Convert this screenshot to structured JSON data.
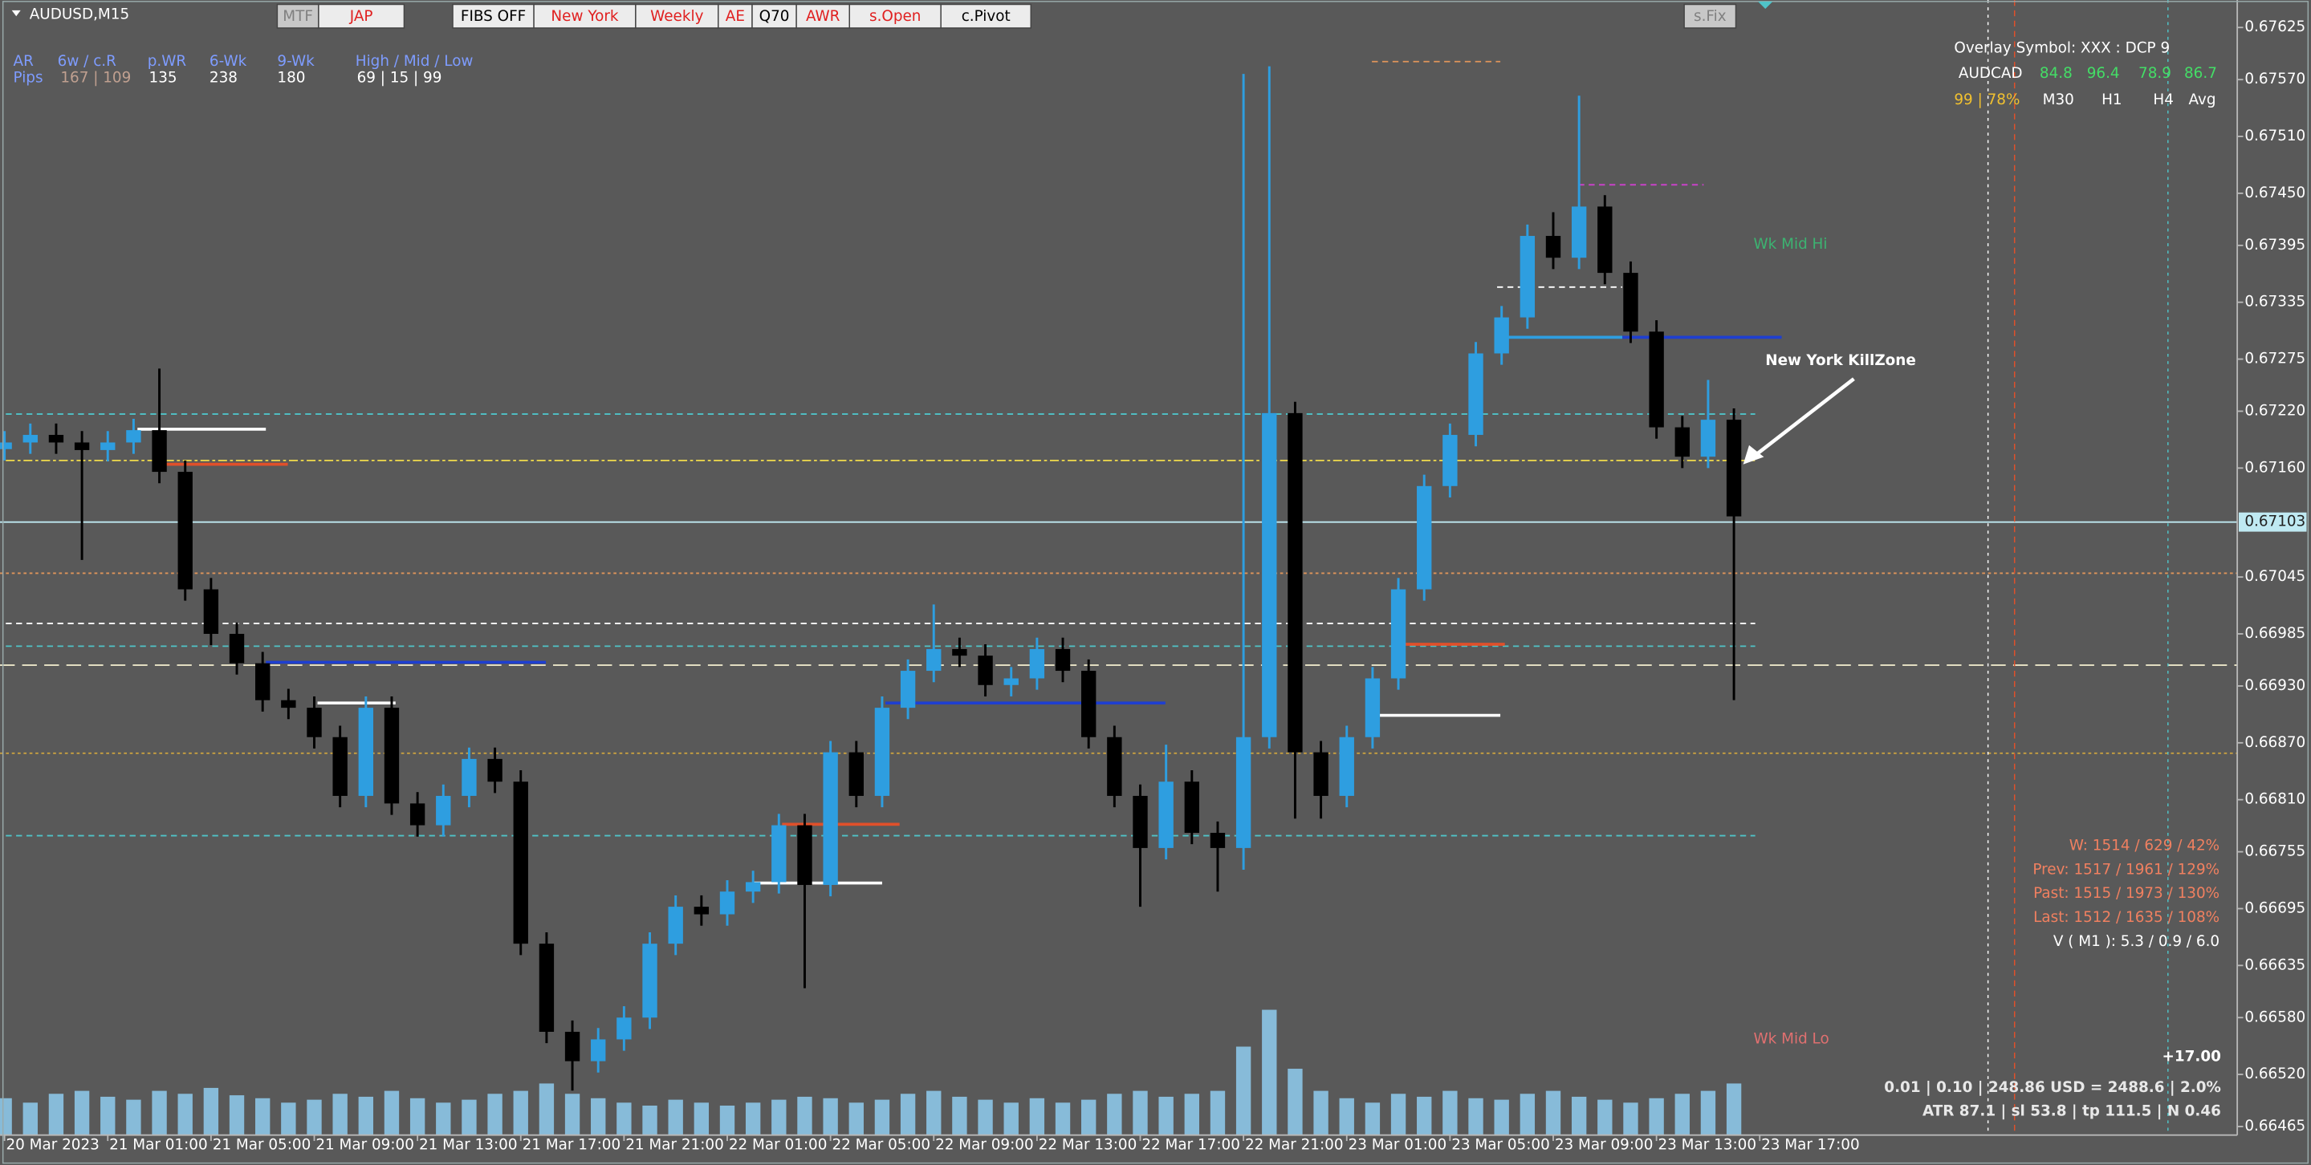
{
  "chart_data": {
    "type": "candlestick",
    "title": "AUDUSD,M15",
    "x": [
      -16,
      -12,
      -8,
      -4,
      0,
      4,
      8,
      12,
      16,
      20,
      24,
      28,
      32,
      36,
      40,
      44,
      48,
      52,
      56,
      60,
      64,
      68,
      72,
      76,
      80,
      84,
      88,
      92,
      96,
      100,
      104,
      108,
      112,
      116,
      120,
      124,
      128,
      132,
      136,
      140,
      144,
      148,
      152,
      156,
      160,
      164,
      168,
      172,
      176,
      180,
      184,
      188,
      192,
      196,
      200,
      204,
      208,
      212,
      216,
      220,
      224,
      228,
      232,
      236,
      240,
      244,
      248,
      252
    ],
    "open": [
      0.6718,
      0.67187,
      0.67195,
      0.67187,
      0.67179,
      0.67187,
      0.672,
      0.67156,
      0.67032,
      0.66985,
      0.66954,
      0.66915,
      0.66907,
      0.66876,
      0.66814,
      0.66907,
      0.66806,
      0.66783,
      0.66814,
      0.66853,
      0.66829,
      0.66658,
      0.66565,
      0.66534,
      0.66557,
      0.6658,
      0.66658,
      0.66697,
      0.66689,
      0.66713,
      0.66723,
      0.66783,
      0.6672,
      0.6686,
      0.66814,
      0.66907,
      0.66946,
      0.66969,
      0.66962,
      0.66931,
      0.66938,
      0.66969,
      0.66946,
      0.66876,
      0.66814,
      0.66759,
      0.66829,
      0.66775,
      0.66759,
      0.66876,
      0.67218,
      0.6686,
      0.66814,
      0.66876,
      0.66938,
      0.67032,
      0.67141,
      0.67195,
      0.67281,
      0.67319,
      0.67405,
      0.67382,
      0.67436,
      0.67366,
      0.67304,
      0.67203,
      0.67172,
      0.67211
    ],
    "high": [
      0.67199,
      0.67207,
      0.67207,
      0.67199,
      0.67199,
      0.67212,
      0.67265,
      0.67168,
      0.67044,
      0.66997,
      0.66966,
      0.66927,
      0.66919,
      0.66888,
      0.66919,
      0.66919,
      0.66818,
      0.66826,
      0.66865,
      0.66865,
      0.66841,
      0.6667,
      0.66577,
      0.66569,
      0.66592,
      0.6667,
      0.66709,
      0.66709,
      0.66725,
      0.66735,
      0.66795,
      0.66795,
      0.66872,
      0.66872,
      0.66919,
      0.66958,
      0.67016,
      0.66981,
      0.66974,
      0.6695,
      0.66981,
      0.66981,
      0.66958,
      0.66888,
      0.66826,
      0.66868,
      0.66841,
      0.66787,
      0.67576,
      0.67584,
      0.6723,
      0.66872,
      0.66888,
      0.6695,
      0.67044,
      0.67153,
      0.67207,
      0.67293,
      0.67331,
      0.67417,
      0.6743,
      0.67553,
      0.67448,
      0.67378,
      0.67316,
      0.67215,
      0.67253,
      0.67223
    ],
    "low": [
      0.67168,
      0.67175,
      0.67175,
      0.67063,
      0.67167,
      0.67175,
      0.67144,
      0.6702,
      0.66973,
      0.66942,
      0.66903,
      0.66895,
      0.66864,
      0.66802,
      0.66802,
      0.66794,
      0.66771,
      0.66771,
      0.66802,
      0.66817,
      0.66646,
      0.66553,
      0.66503,
      0.66522,
      0.66545,
      0.66568,
      0.66646,
      0.66677,
      0.66677,
      0.66701,
      0.66711,
      0.66611,
      0.66708,
      0.66802,
      0.66802,
      0.66895,
      0.66934,
      0.6695,
      0.66919,
      0.66919,
      0.66926,
      0.66934,
      0.66864,
      0.66802,
      0.66697,
      0.66747,
      0.66763,
      0.66713,
      0.66736,
      0.66864,
      0.6679,
      0.6679,
      0.66802,
      0.66864,
      0.66926,
      0.6702,
      0.67129,
      0.67183,
      0.67269,
      0.67307,
      0.6737,
      0.6737,
      0.67354,
      0.67292,
      0.67191,
      0.6716,
      0.6716,
      0.66915
    ],
    "close": [
      0.67187,
      0.67195,
      0.67187,
      0.67179,
      0.67187,
      0.672,
      0.67156,
      0.67032,
      0.66985,
      0.66954,
      0.66915,
      0.66907,
      0.66876,
      0.66814,
      0.66907,
      0.66806,
      0.66783,
      0.66814,
      0.66853,
      0.66829,
      0.66658,
      0.66565,
      0.66534,
      0.66557,
      0.6658,
      0.66658,
      0.66697,
      0.66689,
      0.66713,
      0.66723,
      0.66783,
      0.6672,
      0.6686,
      0.66814,
      0.66907,
      0.66946,
      0.66969,
      0.66962,
      0.66931,
      0.66938,
      0.66969,
      0.66946,
      0.66876,
      0.66814,
      0.66759,
      0.66829,
      0.66775,
      0.66759,
      0.66876,
      0.67218,
      0.6686,
      0.66814,
      0.66876,
      0.66938,
      0.67032,
      0.67141,
      0.67195,
      0.67281,
      0.67319,
      0.67405,
      0.67382,
      0.67436,
      0.67366,
      0.67304,
      0.67203,
      0.67172,
      0.67211,
      0.67109
    ],
    "volume": [
      25,
      22,
      28,
      30,
      26,
      24,
      30,
      28,
      32,
      27,
      25,
      22,
      24,
      28,
      26,
      30,
      25,
      22,
      24,
      28,
      30,
      35,
      28,
      25,
      22,
      20,
      24,
      22,
      20,
      22,
      24,
      26,
      25,
      22,
      24,
      28,
      30,
      26,
      24,
      22,
      25,
      22,
      24,
      28,
      30,
      26,
      28,
      30,
      60,
      85,
      45,
      30,
      25,
      22,
      28,
      26,
      30,
      25,
      24,
      28,
      30,
      26,
      24,
      22,
      25,
      28,
      30,
      35
    ],
    "bull_color": "#2e9ee0",
    "bear_color": "#000000",
    "volume_color": "#8fcdf0",
    "xlim": [
      -16.7,
      330
    ],
    "ylim": [
      0.66456,
      0.67654
    ],
    "xticks": [
      {
        "value": -16,
        "label": "20 Mar 2023"
      },
      {
        "value": 0,
        "label": "21 Mar 01:00"
      },
      {
        "value": 16,
        "label": "21 Mar 05:00"
      },
      {
        "value": 32,
        "label": "21 Mar 09:00"
      },
      {
        "value": 48,
        "label": "21 Mar 13:00"
      },
      {
        "value": 64,
        "label": "21 Mar 17:00"
      },
      {
        "value": 80,
        "label": "21 Mar 21:00"
      },
      {
        "value": 96,
        "label": "22 Mar 01:00"
      },
      {
        "value": 112,
        "label": "22 Mar 05:00"
      },
      {
        "value": 128,
        "label": "22 Mar 09:00"
      },
      {
        "value": 144,
        "label": "22 Mar 13:00"
      },
      {
        "value": 160,
        "label": "22 Mar 17:00"
      },
      {
        "value": 176,
        "label": "22 Mar 21:00"
      },
      {
        "value": 192,
        "label": "23 Mar 01:00"
      },
      {
        "value": 208,
        "label": "23 Mar 05:00"
      },
      {
        "value": 224,
        "label": "23 Mar 09:00"
      },
      {
        "value": 240,
        "label": "23 Mar 13:00"
      },
      {
        "value": 256,
        "label": "23 Mar 17:00"
      }
    ],
    "yticks": [
      {
        "value": 0.67625,
        "label": "0.67625"
      },
      {
        "value": 0.6757,
        "label": "0.67570"
      },
      {
        "value": 0.6751,
        "label": "0.67510"
      },
      {
        "value": 0.6745,
        "label": "0.67450"
      },
      {
        "value": 0.67395,
        "label": "0.67395"
      },
      {
        "value": 0.67335,
        "label": "0.67335"
      },
      {
        "value": 0.67275,
        "label": "0.67275"
      },
      {
        "value": 0.6722,
        "label": "0.67220"
      },
      {
        "value": 0.6716,
        "label": "0.67160"
      },
      {
        "value": 0.67045,
        "label": "0.67045"
      },
      {
        "value": 0.66985,
        "label": "0.66985"
      },
      {
        "value": 0.6693,
        "label": "0.66930"
      },
      {
        "value": 0.6687,
        "label": "0.66870"
      },
      {
        "value": 0.6681,
        "label": "0.66810"
      },
      {
        "value": 0.66755,
        "label": "0.66755"
      },
      {
        "value": 0.66695,
        "label": "0.66695"
      },
      {
        "value": 0.66635,
        "label": "0.66635"
      },
      {
        "value": 0.6658,
        "label": "0.66580"
      },
      {
        "value": 0.6652,
        "label": "0.66520"
      },
      {
        "value": 0.66465,
        "label": "0.66465"
      }
    ],
    "bid": {
      "value": 0.67103,
      "label": "0.67103"
    },
    "bid_color": "#bfe9f2",
    "grid": false,
    "levels": [
      {
        "value": 0.67217,
        "color": "#4fc3c8",
        "style": "dashed",
        "from": -15.8,
        "to": 255.3
      },
      {
        "value": 0.67168,
        "color": "#e8d44d",
        "style": "dashdot",
        "from": -15.8,
        "to": 255.3
      },
      {
        "value": 0.67049,
        "color": "#e0955a",
        "style": "dotted"
      },
      {
        "value": 0.66996,
        "color": "#ffffff",
        "style": "dashed",
        "from": -15.8,
        "to": 255.3
      },
      {
        "value": 0.66972,
        "color": "#4fc3c8",
        "style": "dashed",
        "from": -15.8,
        "to": 255.3
      },
      {
        "value": 0.66952,
        "color": "#f5f0d0",
        "style": "longdash"
      },
      {
        "value": 0.66859,
        "color": "#c8a040",
        "style": "dotted"
      },
      {
        "value": 0.66772,
        "color": "#4fc3c8",
        "style": "dashed",
        "from": -15.8,
        "to": 255.3
      },
      {
        "value": 0.67201,
        "color": "#ffffff",
        "style": "solid",
        "from": 4.6,
        "to": 24.5
      },
      {
        "value": 0.67164,
        "color": "#e0502a",
        "style": "solid",
        "from": 8.5,
        "to": 27.9
      },
      {
        "value": 0.66955,
        "color": "#1f3fd0",
        "style": "solid",
        "from": 24.5,
        "to": 67.9
      },
      {
        "value": 0.66912,
        "color": "#ffffff",
        "style": "solid",
        "from": 32.5,
        "to": 44.6
      },
      {
        "value": 0.66912,
        "color": "#1f3fd0",
        "style": "solid",
        "from": 120.5,
        "to": 163.9
      },
      {
        "value": 0.66722,
        "color": "#ffffff",
        "style": "solid",
        "from": 99.9,
        "to": 120
      },
      {
        "value": 0.66784,
        "color": "#e0502a",
        "style": "solid",
        "from": 104.5,
        "to": 122.7
      },
      {
        "value": 0.67298,
        "color": "#2e9ee0",
        "style": "solid",
        "from": 216.5,
        "to": 234.7
      },
      {
        "value": 0.67298,
        "color": "#1f3fd0",
        "style": "solid",
        "from": 234.7,
        "to": 259.4
      },
      {
        "value": 0.66899,
        "color": "#ffffff",
        "style": "solid",
        "from": 195.9,
        "to": 215.8
      },
      {
        "value": 0.66974,
        "color": "#e0502a",
        "style": "solid",
        "from": 200.5,
        "to": 216.5
      },
      {
        "value": 0.67351,
        "color": "#ffffff",
        "style": "dashed",
        "from": 215.3,
        "to": 234.7
      },
      {
        "value": 0.67589,
        "color": "#e0955a",
        "style": "dashed",
        "from": 195.9,
        "to": 215.8
      },
      {
        "value": 0.67459,
        "color": "#d040d0",
        "style": "dashed",
        "from": 227.9,
        "to": 247.3
      }
    ],
    "annotations": [
      {
        "text": "Wk Mid Hi",
        "color": "#3cb371"
      },
      {
        "text": "New York KillZone",
        "color": "#ffffff"
      },
      {
        "text": "Wk Mid Lo",
        "color": "#e07070"
      }
    ]
  },
  "toolbar": {
    "buttons": [
      {
        "label": "MTF",
        "color": "#808080"
      },
      {
        "label": "JAP",
        "color": "#e02020"
      },
      {
        "label": "FIBS OFF",
        "color": "#000000"
      },
      {
        "label": "New York",
        "color": "#e02020"
      },
      {
        "label": "Weekly",
        "color": "#e02020"
      },
      {
        "label": "AE",
        "color": "#e02020"
      },
      {
        "label": "Q70",
        "color": "#000000"
      },
      {
        "label": "AWR",
        "color": "#e02020"
      },
      {
        "label": "s.Open",
        "color": "#e02020"
      },
      {
        "label": "c.Pivot",
        "color": "#000000"
      },
      {
        "label": "s.Fix",
        "color": "#808080"
      }
    ]
  },
  "stats_table": {
    "header": [
      "AR",
      "6w / c.R",
      "p.WR",
      "6-Wk",
      "9-Wk",
      "High / Mid / Low"
    ],
    "row": [
      "Pips",
      "167 | 109",
      "135",
      "238",
      "180",
      "69  |  15  |  99"
    ]
  },
  "overlay": {
    "title": "Overlay Symbol: XXX : DCP 9",
    "symbol": "AUDCAD",
    "values": [
      "84.8",
      "96.4",
      "78.9",
      "86.7"
    ],
    "ratio": "99 | 78%",
    "timeframes": [
      "M30",
      "H1",
      "H4",
      "Avg"
    ]
  },
  "range_stats": [
    "W: 1514 / 629 / 42%",
    "Prev: 1517 / 1961 / 129%",
    "Past: 1515 / 1973 / 130%",
    "Last: 1512 / 1635 / 108%"
  ],
  "volatility": "V ( M1 ): 5.3 / 0.9 / 6.0",
  "trade_panel": {
    "profit": "+17.00",
    "line1": "0.01  |  0.10  |  248.86 USD = 2488.6  |  2.0%",
    "line2": "ATR 87.1  |  sl 53.8  |  tp 111.5  |  N 0.46"
  }
}
